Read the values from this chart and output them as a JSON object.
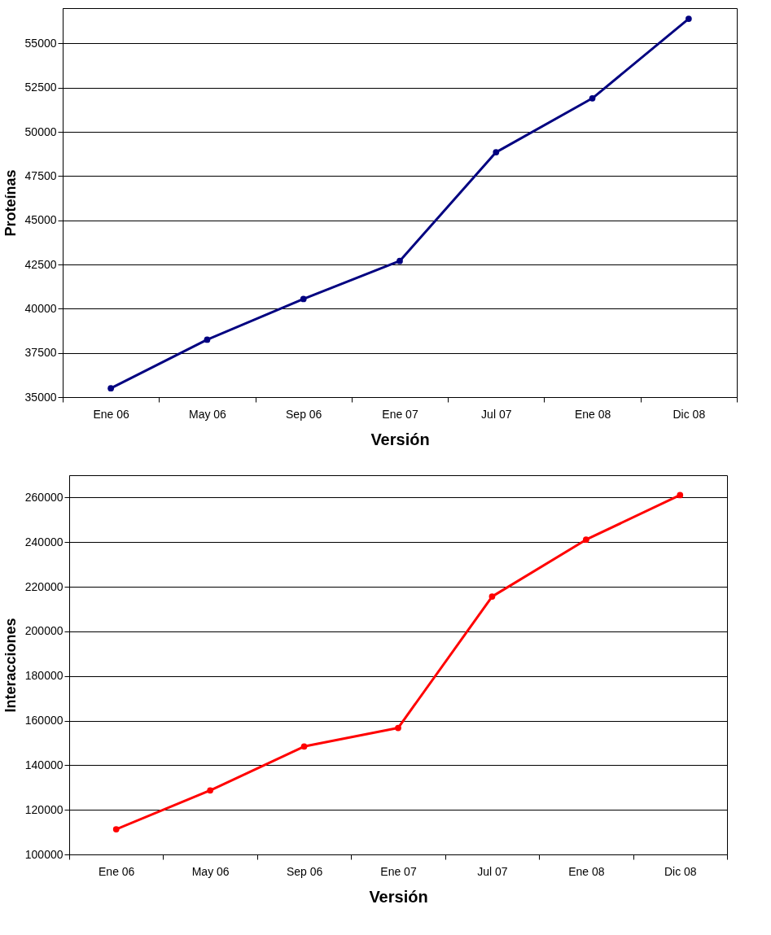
{
  "chart_data": [
    {
      "type": "line",
      "categories": [
        "Ene 06",
        "May 06",
        "Sep 06",
        "Ene 07",
        "Jul 07",
        "Ene 08",
        "Dic 08"
      ],
      "values": [
        35500,
        38250,
        40550,
        42700,
        48850,
        51900,
        56400
      ],
      "color": "#000080",
      "xlabel": "Versión",
      "ylabel": "Proteínas",
      "ylim": [
        35000,
        57000
      ],
      "yticks": [
        35000,
        37500,
        40000,
        42500,
        45000,
        47500,
        50000,
        52500,
        55000
      ],
      "grid": "y",
      "marker": "circle"
    },
    {
      "type": "line",
      "categories": [
        "Ene 06",
        "May 06",
        "Sep 06",
        "Ene 07",
        "Jul 07",
        "Ene 08",
        "Dic 08"
      ],
      "values": [
        111300,
        128700,
        148400,
        156700,
        215600,
        241100,
        261100
      ],
      "color": "#ff0000",
      "xlabel": "Versión",
      "ylabel": "Interacciones",
      "ylim": [
        100000,
        270000
      ],
      "yticks": [
        100000,
        120000,
        140000,
        160000,
        180000,
        200000,
        220000,
        240000,
        260000
      ],
      "grid": "y",
      "marker": "circle"
    }
  ]
}
